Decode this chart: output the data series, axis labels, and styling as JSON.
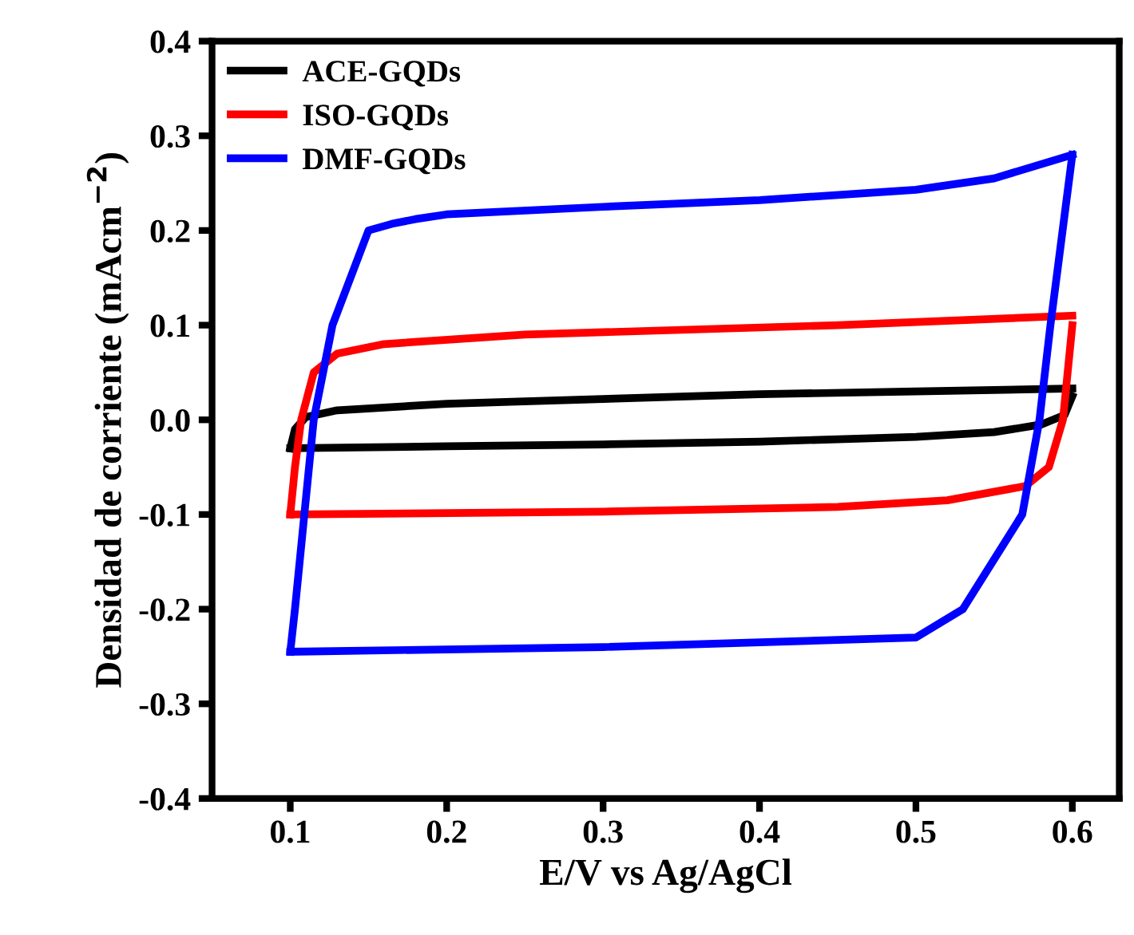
{
  "chart_data": {
    "type": "line",
    "xlabel": "E/V vs Ag/AgCl",
    "ylabel": "Densidad de corriente (mAcm$^{−2}$)",
    "xlim": [
      0.05,
      0.63
    ],
    "xticks": [
      0.1,
      0.2,
      0.3,
      0.4,
      0.5,
      0.6
    ],
    "ylim": [
      -0.4,
      0.4
    ],
    "yticks": [
      {
        "value": -0.4,
        "label": "-0.4"
      },
      {
        "value": -0.3,
        "label": "-0.3"
      },
      {
        "value": -0.2,
        "label": "-0.2"
      },
      {
        "value": -0.1,
        "label": "-0.1"
      },
      {
        "value": 0.0,
        "label": "0.0"
      },
      {
        "value": 0.1,
        "label": "0.1"
      },
      {
        "value": 0.2,
        "label": "0.2"
      },
      {
        "value": 0.3,
        "label": "0.3"
      },
      {
        "value": 0.4,
        "label": "0.4"
      }
    ],
    "grid": false,
    "legend": "top left",
    "marker": "none",
    "line_style": "solid",
    "series": [
      {
        "name": "ACE-GQDs",
        "color": "#000000",
        "x": [
          0.1,
          0.103,
          0.11,
          0.13,
          0.2,
          0.3,
          0.4,
          0.5,
          0.6
        ],
        "values": [
          -0.03,
          -0.01,
          0.003,
          0.01,
          0.017,
          0.022,
          0.027,
          0.03,
          0.033
        ]
      },
      {
        "color": "#000000",
        "x": [
          0.1,
          0.2,
          0.3,
          0.4,
          0.5,
          0.55,
          0.58,
          0.595,
          0.6
        ],
        "values": [
          -0.03,
          -0.028,
          -0.026,
          -0.023,
          -0.018,
          -0.013,
          -0.005,
          0.005,
          0.025
        ]
      },
      {
        "name": "ISO-GQDs",
        "color": "#ff0000",
        "x": [
          0.1,
          0.103,
          0.107,
          0.115,
          0.13,
          0.16,
          0.25,
          0.35,
          0.45,
          0.6
        ],
        "values": [
          -0.1,
          -0.05,
          0.0,
          0.05,
          0.07,
          0.08,
          0.09,
          0.095,
          0.1,
          0.11
        ]
      },
      {
        "color": "#ff0000",
        "x": [
          0.1,
          0.3,
          0.45,
          0.52,
          0.57,
          0.585,
          0.594,
          0.597,
          0.6
        ],
        "values": [
          -0.1,
          -0.097,
          -0.092,
          -0.085,
          -0.07,
          -0.05,
          0.0,
          0.05,
          0.1
        ]
      },
      {
        "name": "DMF-GQDs",
        "color": "#0000ff",
        "x": [
          0.1,
          0.103,
          0.109,
          0.115,
          0.127,
          0.15,
          0.165,
          0.18,
          0.2,
          0.3,
          0.4,
          0.5,
          0.55,
          0.6
        ],
        "values": [
          -0.245,
          -0.2,
          -0.1,
          0.0,
          0.1,
          0.2,
          0.207,
          0.212,
          0.217,
          0.225,
          0.232,
          0.243,
          0.255,
          0.28
        ]
      },
      {
        "color": "#0000ff",
        "x": [
          0.1,
          0.3,
          0.5,
          0.53,
          0.568,
          0.579,
          0.586,
          0.6
        ],
        "values": [
          -0.245,
          -0.24,
          -0.23,
          -0.2,
          -0.1,
          0.0,
          0.1,
          0.28
        ]
      }
    ]
  }
}
